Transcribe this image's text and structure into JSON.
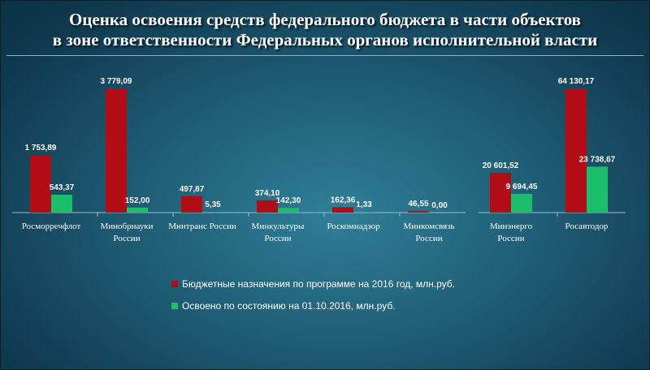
{
  "title_line1": "Оценка освоения средств федерального бюджета в части объектов",
  "title_line2": "в зоне ответственности Федеральных органов исполнительной власти",
  "colors": {
    "budget": "#b20d14",
    "mastered": "#1bbe6a"
  },
  "legend": {
    "budget": "Бюджетные назначения по программе на 2016 год, млн.руб.",
    "mastered": "Освоено по состоянию на 01.10.2016, млн.руб."
  },
  "chart_data": [
    {
      "type": "bar",
      "categories": [
        [
          "Росморречфлот"
        ],
        [
          "Минобрнауки",
          "России"
        ],
        [
          "Минтранс России"
        ],
        [
          "Минкультуры",
          "России"
        ],
        [
          "Роскомнадзор"
        ],
        [
          "Минкомсвязь",
          "России"
        ]
      ],
      "series": [
        {
          "name": "Бюджетные назначения по программе на 2016 год, млн.руб.",
          "values": [
            1753.89,
            3779.09,
            497.87,
            374.1,
            162.36,
            46.55
          ],
          "labels": [
            "1 753,89",
            "3 779,09",
            "497,87",
            "374,10",
            "162,36",
            "46,55"
          ]
        },
        {
          "name": "Освоено по состоянию на 01.10.2016, млн.руб.",
          "values": [
            543.37,
            152.0,
            5.35,
            142.3,
            1.33,
            0.0
          ],
          "labels": [
            "543,37",
            "152,00",
            "5,35",
            "142,30",
            "1,33",
            "0,00"
          ]
        }
      ],
      "ylim": [
        0,
        4000
      ],
      "grid": false,
      "legend_position": "bottom"
    },
    {
      "type": "bar",
      "categories": [
        [
          "Минэнерго",
          "России"
        ],
        [
          "Росавтодор"
        ]
      ],
      "series": [
        {
          "name": "Бюджетные назначения по программе на 2016 год, млн.руб.",
          "values": [
            20601.52,
            64130.17
          ],
          "labels": [
            "20 601,52",
            "64 130,17"
          ]
        },
        {
          "name": "Освоено по состоянию на 01.10.2016, млн.руб.",
          "values": [
            9694.45,
            23738.67
          ],
          "labels": [
            "9 694,45",
            "23 738,67"
          ]
        }
      ],
      "ylim": [
        0,
        68000
      ],
      "grid": false,
      "legend_position": "bottom"
    }
  ]
}
